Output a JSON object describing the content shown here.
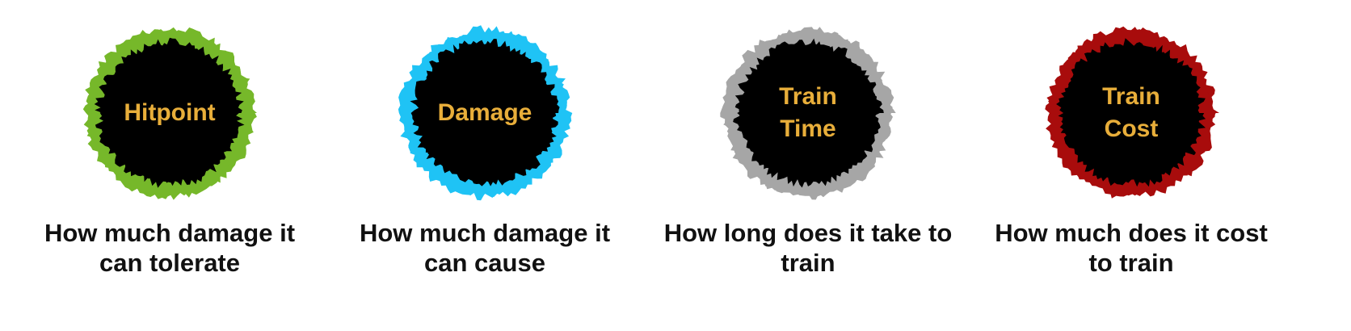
{
  "stats": [
    {
      "label_lines": [
        "Hitpoint"
      ],
      "desc_lines": [
        "How much damage it",
        "can tolerate"
      ],
      "ring_color": "#76B82A"
    },
    {
      "label_lines": [
        "Damage"
      ],
      "desc_lines": [
        "How much damage it",
        "can cause"
      ],
      "ring_color": "#1FC3F5"
    },
    {
      "label_lines": [
        "Train",
        "Time"
      ],
      "desc_lines": [
        "How long does it take to",
        "train"
      ],
      "ring_color": "#A6A6A6"
    },
    {
      "label_lines": [
        "Train",
        "Cost"
      ],
      "desc_lines": [
        "How much does it cost",
        "to train"
      ],
      "ring_color": "#A80C0C"
    }
  ],
  "label_color": "#E8AE3A",
  "core_color": "#000000"
}
